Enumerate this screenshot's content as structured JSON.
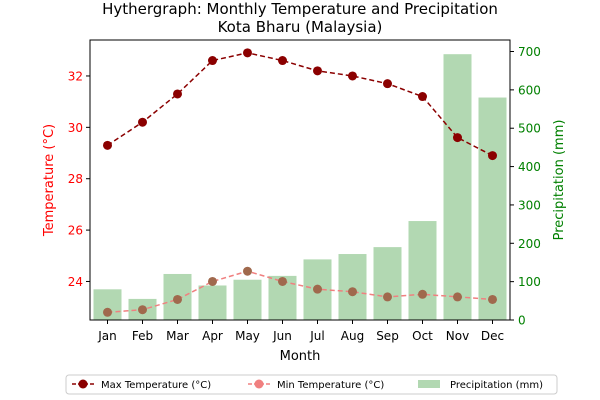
{
  "chart_data": {
    "type": "bar+line",
    "title": "Hythergraph: Monthly Temperature and Precipitation",
    "subtitle": "Kota Bharu (Malaysia)",
    "xlabel": "Month",
    "ylabel_left": "Temperature (°C)",
    "ylabel_right": "Precipitation (mm)",
    "categories": [
      "Jan",
      "Feb",
      "Mar",
      "Apr",
      "May",
      "Jun",
      "Jul",
      "Aug",
      "Sep",
      "Oct",
      "Nov",
      "Dec"
    ],
    "ylim_left": [
      22.5,
      33.4
    ],
    "ylim_right": [
      0,
      730
    ],
    "yticks_left": [
      24,
      26,
      28,
      30,
      32
    ],
    "yticks_right": [
      0,
      100,
      200,
      300,
      400,
      500,
      600,
      700
    ],
    "grid": false,
    "legend_placement": "bottom-center",
    "series": [
      {
        "name": "Max Temperature (°C)",
        "kind": "line",
        "axis": "left",
        "color": "#8b0000",
        "line_style": "dashed",
        "values": [
          29.3,
          30.2,
          31.3,
          32.6,
          32.9,
          32.6,
          32.2,
          32.0,
          31.7,
          31.2,
          29.6,
          28.9
        ]
      },
      {
        "name": "Min Temperature (°C)",
        "kind": "line",
        "axis": "left",
        "color": "#f08080",
        "line_style": "dashed",
        "values": [
          22.8,
          22.9,
          23.3,
          24.0,
          24.4,
          24.0,
          23.7,
          23.6,
          23.4,
          23.5,
          23.4,
          23.3
        ]
      },
      {
        "name": "Precipitation (mm)",
        "kind": "bar",
        "axis": "right",
        "color": "#b2d8b2",
        "values": [
          80,
          55,
          120,
          90,
          105,
          115,
          158,
          172,
          190,
          258,
          693,
          580
        ]
      }
    ],
    "colors": {
      "left_axis": "#ff0000",
      "right_axis": "#008000",
      "min_marker_fill": "#a0694d"
    }
  }
}
